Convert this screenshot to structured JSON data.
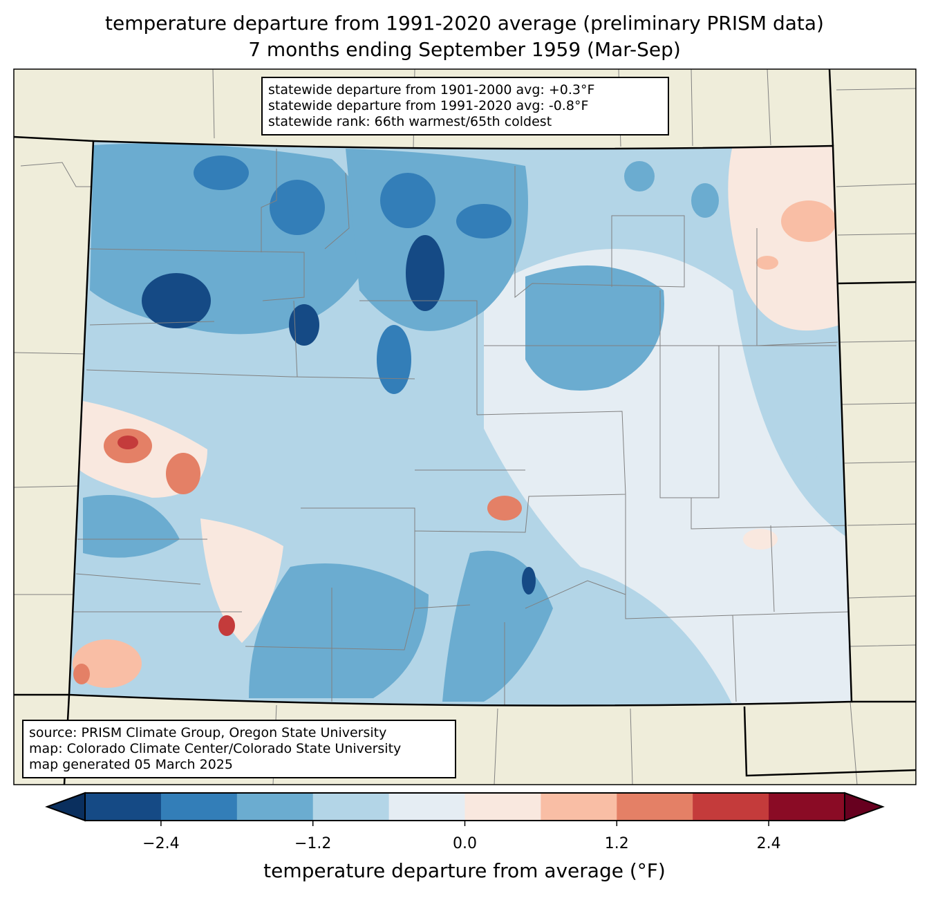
{
  "title": {
    "line1": "temperature departure from 1991-2020 average (preliminary PRISM data)",
    "line2": "7 months ending September 1959 (Mar-Sep)"
  },
  "stats": {
    "line1": "statewide departure from 1901-2000 avg: +0.3°F",
    "line2": "statewide departure from 1991-2020 avg: -0.8°F",
    "line3": "statewide rank: 66th warmest/65th coldest"
  },
  "source": {
    "line1": "source: PRISM Climate Group, Oregon State University",
    "line2": "map: Colorado Climate Center/Colorado State University",
    "line3": "map generated 05 March 2025"
  },
  "colorbar": {
    "label": "temperature departure from average (°F)",
    "levels": [
      -3.0,
      -2.4,
      -1.8,
      -1.2,
      -0.6,
      0.0,
      0.6,
      1.2,
      1.8,
      2.4,
      3.0
    ],
    "colors": [
      "#154a85",
      "#337eb8",
      "#6bacd0",
      "#b3d5e7",
      "#e5edf3",
      "#f9e8df",
      "#f9bea5",
      "#e48066",
      "#c43b3b",
      "#8a0b25"
    ],
    "under_color": "#0a2f5e",
    "over_color": "#67001f",
    "ticks": [
      "−2.4",
      "−1.2",
      "0.0",
      "1.2",
      "2.4"
    ]
  },
  "colors": {
    "land": "#efedda",
    "border": "#000000",
    "county": "#808080"
  }
}
